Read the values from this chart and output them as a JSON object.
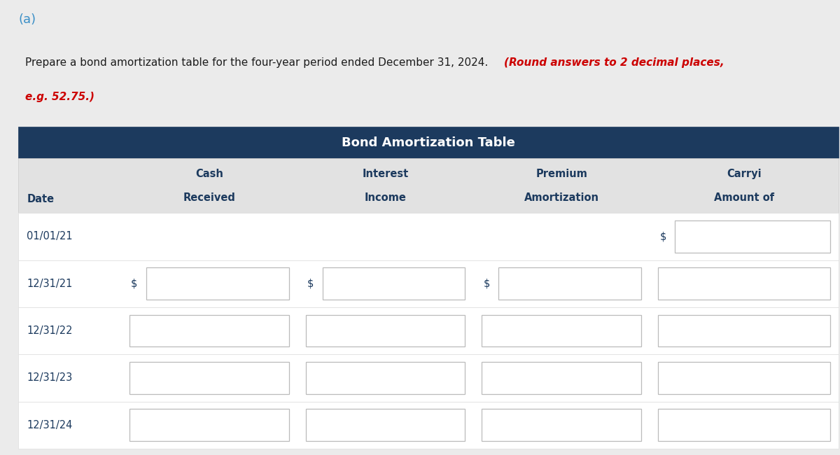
{
  "title_a": "(a)",
  "desc_normal": "Prepare a bond amortization table for the four-year period ended December 31, 2024. ",
  "desc_italic1": "(Round answers to 2 decimal places,",
  "desc_italic2": "e.g. 52.75.)",
  "table_title": "Bond Amortization Table",
  "col_headers": [
    [
      "Date",
      ""
    ],
    [
      "Cash",
      "Received"
    ],
    [
      "Interest",
      "Income"
    ],
    [
      "Premium",
      "Amortization"
    ],
    [
      "Carryi",
      "Amount of"
    ]
  ],
  "dates": [
    "01/01/21",
    "12/31/21",
    "12/31/22",
    "12/31/23",
    "12/31/24"
  ],
  "dollar_cfg": [
    [
      false,
      false,
      false,
      true
    ],
    [
      true,
      true,
      true,
      false
    ],
    [
      false,
      false,
      false,
      false
    ],
    [
      false,
      false,
      false,
      false
    ],
    [
      false,
      false,
      false,
      false
    ]
  ],
  "show_box": [
    [
      false,
      false,
      false,
      true
    ],
    [
      true,
      true,
      true,
      true
    ],
    [
      true,
      true,
      true,
      true
    ],
    [
      true,
      true,
      true,
      true
    ],
    [
      true,
      true,
      true,
      true
    ]
  ],
  "header_bg": "#1c3a5e",
  "subheader_bg": "#e2e2e2",
  "header_text_color": "#ffffff",
  "subheader_text_color": "#1c3a5e",
  "body_text_color": "#1c3a5e",
  "input_box_border": "#bbbbbb",
  "outer_bg": "#ebebeb",
  "white_panel_bg": "#ffffff",
  "tab_label_color": "#3b8fc7",
  "italic_text_color": "#cc0000",
  "normal_text_color": "#1c1c1c",
  "row_divider": "#dddddd"
}
